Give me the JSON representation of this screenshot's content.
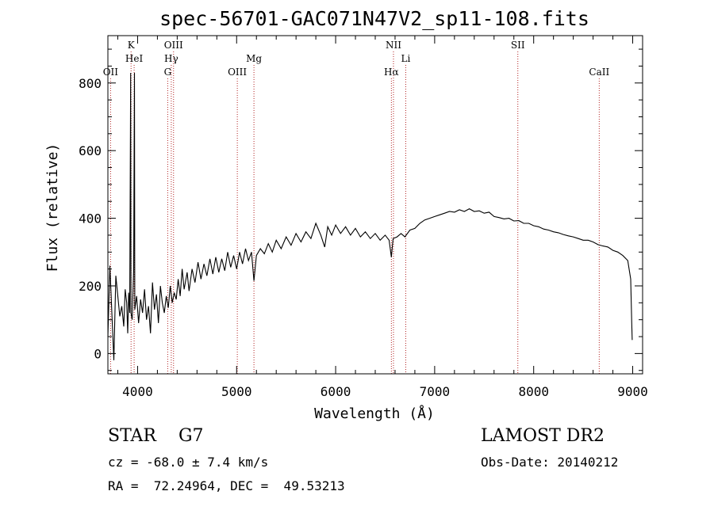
{
  "chart_data": {
    "type": "line",
    "title": "spec-56701-GAC071N47V2_sp11-108.fits",
    "xlabel": "Wavelength (Å)",
    "ylabel": "Flux (relative)",
    "xlim": [
      3700,
      9100
    ],
    "ylim": [
      -60,
      940
    ],
    "xticks": [
      "4000",
      "5000",
      "6000",
      "7000",
      "8000",
      "9000"
    ],
    "yticks": [
      "0",
      "200",
      "400",
      "600",
      "800"
    ],
    "grid": false,
    "series": [
      {
        "color": "#000000",
        "points": [
          [
            3700,
            50
          ],
          [
            3720,
            260
          ],
          [
            3740,
            120
          ],
          [
            3760,
            -20
          ],
          [
            3780,
            230
          ],
          [
            3800,
            170
          ],
          [
            3820,
            110
          ],
          [
            3840,
            140
          ],
          [
            3860,
            80
          ],
          [
            3875,
            190
          ],
          [
            3890,
            150
          ],
          [
            3900,
            60
          ],
          [
            3910,
            180
          ],
          [
            3920,
            120
          ],
          [
            3930,
            830
          ],
          [
            3933,
            120
          ],
          [
            3945,
            100
          ],
          [
            3960,
            250
          ],
          [
            3968,
            830
          ],
          [
            3972,
            130
          ],
          [
            3990,
            170
          ],
          [
            4010,
            90
          ],
          [
            4030,
            160
          ],
          [
            4050,
            120
          ],
          [
            4070,
            190
          ],
          [
            4090,
            100
          ],
          [
            4110,
            140
          ],
          [
            4130,
            60
          ],
          [
            4150,
            210
          ],
          [
            4170,
            130
          ],
          [
            4190,
            175
          ],
          [
            4210,
            90
          ],
          [
            4230,
            200
          ],
          [
            4250,
            150
          ],
          [
            4270,
            120
          ],
          [
            4290,
            170
          ],
          [
            4310,
            135
          ],
          [
            4330,
            200
          ],
          [
            4350,
            150
          ],
          [
            4370,
            180
          ],
          [
            4390,
            160
          ],
          [
            4410,
            220
          ],
          [
            4430,
            170
          ],
          [
            4450,
            250
          ],
          [
            4470,
            190
          ],
          [
            4500,
            240
          ],
          [
            4520,
            185
          ],
          [
            4550,
            250
          ],
          [
            4580,
            210
          ],
          [
            4610,
            270
          ],
          [
            4640,
            220
          ],
          [
            4670,
            265
          ],
          [
            4700,
            230
          ],
          [
            4730,
            280
          ],
          [
            4760,
            235
          ],
          [
            4790,
            285
          ],
          [
            4820,
            240
          ],
          [
            4850,
            280
          ],
          [
            4880,
            245
          ],
          [
            4910,
            300
          ],
          [
            4940,
            255
          ],
          [
            4970,
            290
          ],
          [
            5000,
            250
          ],
          [
            5030,
            300
          ],
          [
            5060,
            265
          ],
          [
            5090,
            310
          ],
          [
            5120,
            275
          ],
          [
            5150,
            300
          ],
          [
            5175,
            215
          ],
          [
            5200,
            290
          ],
          [
            5240,
            310
          ],
          [
            5280,
            295
          ],
          [
            5320,
            325
          ],
          [
            5360,
            300
          ],
          [
            5400,
            335
          ],
          [
            5450,
            310
          ],
          [
            5500,
            345
          ],
          [
            5550,
            320
          ],
          [
            5600,
            355
          ],
          [
            5650,
            330
          ],
          [
            5700,
            360
          ],
          [
            5750,
            340
          ],
          [
            5800,
            385
          ],
          [
            5850,
            350
          ],
          [
            5890,
            315
          ],
          [
            5920,
            375
          ],
          [
            5960,
            350
          ],
          [
            6000,
            380
          ],
          [
            6050,
            355
          ],
          [
            6100,
            375
          ],
          [
            6150,
            350
          ],
          [
            6200,
            370
          ],
          [
            6250,
            345
          ],
          [
            6300,
            360
          ],
          [
            6350,
            340
          ],
          [
            6400,
            355
          ],
          [
            6450,
            335
          ],
          [
            6500,
            350
          ],
          [
            6540,
            335
          ],
          [
            6563,
            285
          ],
          [
            6580,
            340
          ],
          [
            6620,
            345
          ],
          [
            6660,
            355
          ],
          [
            6700,
            345
          ],
          [
            6750,
            365
          ],
          [
            6800,
            370
          ],
          [
            6850,
            385
          ],
          [
            6900,
            395
          ],
          [
            6950,
            400
          ],
          [
            7000,
            405
          ],
          [
            7050,
            410
          ],
          [
            7100,
            415
          ],
          [
            7150,
            420
          ],
          [
            7200,
            418
          ],
          [
            7250,
            425
          ],
          [
            7300,
            420
          ],
          [
            7350,
            428
          ],
          [
            7400,
            420
          ],
          [
            7450,
            422
          ],
          [
            7500,
            415
          ],
          [
            7550,
            418
          ],
          [
            7600,
            405
          ],
          [
            7650,
            402
          ],
          [
            7700,
            398
          ],
          [
            7750,
            400
          ],
          [
            7800,
            392
          ],
          [
            7850,
            393
          ],
          [
            7900,
            385
          ],
          [
            7950,
            385
          ],
          [
            8000,
            378
          ],
          [
            8050,
            375
          ],
          [
            8100,
            368
          ],
          [
            8150,
            365
          ],
          [
            8200,
            360
          ],
          [
            8250,
            357
          ],
          [
            8300,
            352
          ],
          [
            8350,
            348
          ],
          [
            8400,
            345
          ],
          [
            8450,
            340
          ],
          [
            8500,
            335
          ],
          [
            8550,
            335
          ],
          [
            8600,
            330
          ],
          [
            8650,
            322
          ],
          [
            8700,
            318
          ],
          [
            8750,
            315
          ],
          [
            8800,
            305
          ],
          [
            8850,
            300
          ],
          [
            8900,
            290
          ],
          [
            8950,
            275
          ],
          [
            8980,
            220
          ],
          [
            8990,
            90
          ],
          [
            8995,
            40
          ]
        ]
      }
    ],
    "lines": [
      {
        "label": "OII",
        "x": 3727,
        "row": 3,
        "line": true
      },
      {
        "label": "K",
        "x": 3934,
        "row": 1,
        "line": true
      },
      {
        "label": "HeI",
        "x": 3965,
        "row": 2,
        "line": true
      },
      {
        "label": "OIII",
        "x": 4363,
        "row": 1,
        "line": true
      },
      {
        "label": "Hγ",
        "x": 4340,
        "row": 2,
        "line": true
      },
      {
        "label": "G",
        "x": 4304,
        "row": 3,
        "line": true
      },
      {
        "label": "Mg",
        "x": 5175,
        "row": 2,
        "line": true
      },
      {
        "label": "OIII",
        "x": 5007,
        "row": 3,
        "line": true
      },
      {
        "label": "NII",
        "x": 6584,
        "row": 1,
        "line": true
      },
      {
        "label": "Li",
        "x": 6708,
        "row": 2,
        "line": true
      },
      {
        "label": "Hα",
        "x": 6563,
        "row": 3,
        "line": true
      },
      {
        "label": "SII",
        "x": 7840,
        "row": 1,
        "line": true
      },
      {
        "label": "CaII",
        "x": 8662,
        "row": 3,
        "line": true
      }
    ],
    "line_color": "#b22222"
  },
  "info": {
    "class_line": "STAR    G7",
    "survey": "LAMOST DR2",
    "cz": "cz = -68.0 ± 7.4 km/s",
    "obs_date": "Obs-Date: 20140212",
    "radec": "RA =  72.24964, DEC =  49.53213"
  }
}
